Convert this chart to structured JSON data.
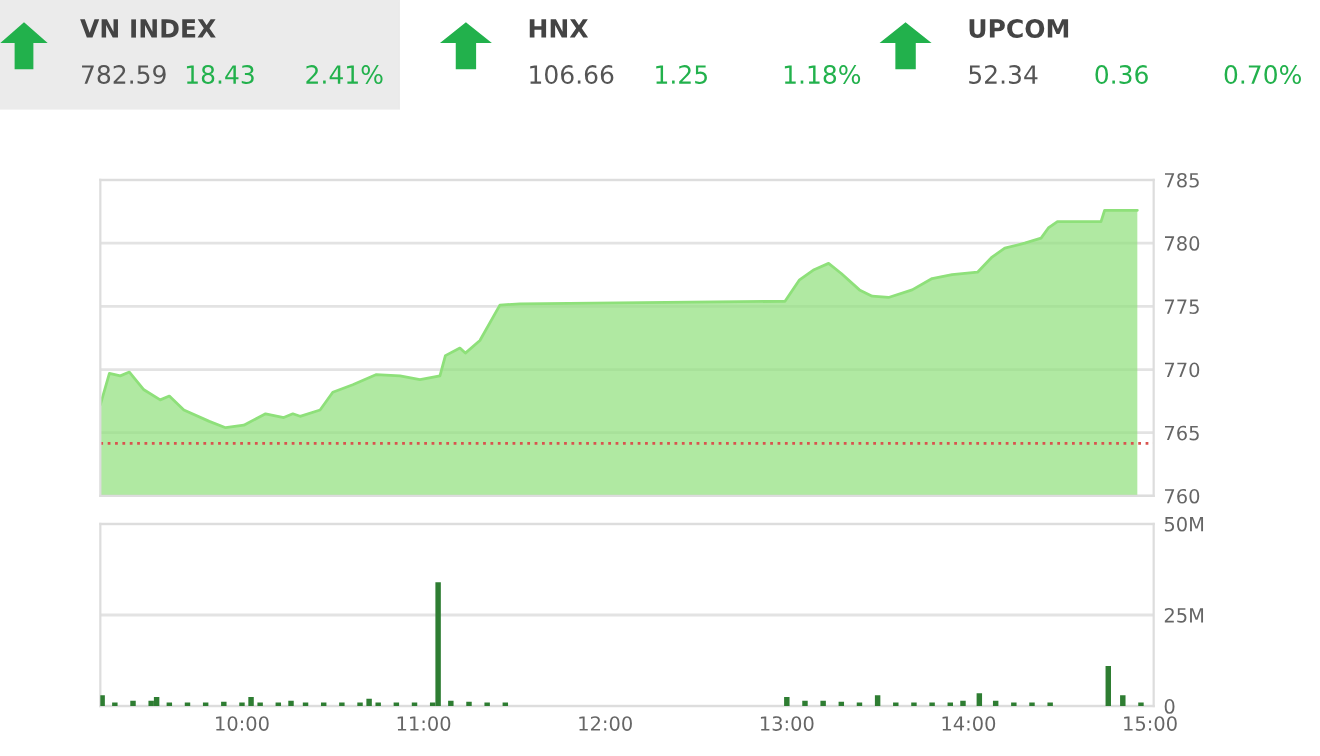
{
  "chart_data": [
    {
      "type": "other",
      "title": "VN INDEX",
      "annotations": [
        "782.59",
        "18.43",
        "2.41%"
      ]
    },
    {
      "type": "other",
      "title": "HNX",
      "annotations": [
        "106.66",
        "1.25",
        "1.18%"
      ]
    },
    {
      "type": "other",
      "title": "UPCOM",
      "annotations": [
        "52.34",
        "0.36",
        "0.70%"
      ]
    },
    {
      "type": "area",
      "xlim": [
        9.22,
        15.02
      ],
      "ylim": [
        760,
        785
      ],
      "yticks": [
        760,
        765,
        770,
        775,
        780,
        785
      ],
      "tick_labels": "y",
      "grid": "y",
      "color": "#8ee07a",
      "x": [
        9.22,
        9.27,
        9.33,
        9.38,
        9.46,
        9.55,
        9.6,
        9.68,
        9.82,
        9.91,
        10.01,
        10.13,
        10.23,
        10.28,
        10.32,
        10.43,
        10.5,
        10.61,
        10.74,
        10.87,
        10.98,
        11.09,
        11.12,
        11.2,
        11.23,
        11.31,
        11.42,
        11.53,
        12.99,
        13.07,
        13.15,
        13.23,
        13.3,
        13.4,
        13.47,
        13.56,
        13.69,
        13.8,
        13.91,
        14.05,
        14.13,
        14.2,
        14.31,
        14.4,
        14.44,
        14.49,
        14.73,
        14.75,
        14.93
      ],
      "values": [
        767.2,
        769.7,
        769.5,
        769.8,
        768.4,
        767.6,
        767.9,
        766.8,
        765.9,
        765.4,
        765.6,
        766.5,
        766.2,
        766.5,
        766.3,
        766.8,
        768.2,
        768.8,
        769.6,
        769.5,
        769.2,
        769.5,
        771.1,
        771.7,
        771.3,
        772.3,
        775.1,
        775.2,
        775.4,
        777.1,
        777.9,
        778.4,
        777.6,
        776.3,
        775.8,
        775.7,
        776.3,
        777.2,
        777.5,
        777.7,
        778.9,
        779.6,
        780.0,
        780.4,
        781.2,
        781.7,
        781.7,
        782.6,
        782.6
      ],
      "ref_lines": [
        {
          "axis": "y",
          "value": 764.16,
          "color": "#d9534f",
          "line_style": "dotted"
        }
      ]
    },
    {
      "type": "bar",
      "xlim": [
        9.22,
        15.02
      ],
      "ylim": [
        0,
        50
      ],
      "yticks": [
        0,
        {
          "value": 25,
          "label": "25M"
        },
        {
          "value": 50,
          "label": "50M"
        }
      ],
      "xticks": [
        {
          "value": 10,
          "label": "10:00"
        },
        {
          "value": 11,
          "label": "11:00"
        },
        {
          "value": 12,
          "label": "12:00"
        },
        {
          "value": 13,
          "label": "13:00"
        },
        {
          "value": 14,
          "label": "14:00"
        },
        {
          "value": 15,
          "label": "15:00"
        }
      ],
      "grid": "y",
      "color": "#2e7d32",
      "x": [
        9.23,
        9.3,
        9.4,
        9.5,
        9.53,
        9.6,
        9.7,
        9.8,
        9.9,
        10.0,
        10.05,
        10.1,
        10.2,
        10.27,
        10.35,
        10.45,
        10.55,
        10.65,
        10.7,
        10.75,
        10.85,
        10.95,
        11.05,
        11.08,
        11.15,
        11.25,
        11.35,
        11.45,
        13.0,
        13.1,
        13.2,
        13.3,
        13.4,
        13.5,
        13.6,
        13.7,
        13.8,
        13.9,
        13.97,
        14.06,
        14.15,
        14.25,
        14.35,
        14.45,
        14.77,
        14.85,
        14.95
      ],
      "values": [
        3,
        1,
        1.5,
        1.5,
        2.5,
        1,
        1,
        1,
        1.2,
        1,
        2.5,
        1,
        1,
        1.5,
        1,
        1,
        1,
        1,
        2,
        1,
        1,
        1,
        1,
        34,
        1.5,
        1.2,
        1,
        1,
        2.5,
        1.5,
        1.5,
        1.2,
        1,
        3,
        1,
        1,
        1,
        1,
        1.5,
        3.5,
        1.5,
        1,
        1,
        1,
        11,
        3,
        1
      ]
    }
  ]
}
